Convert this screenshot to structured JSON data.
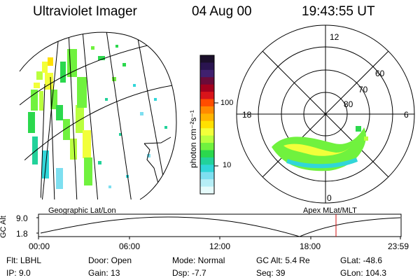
{
  "header": {
    "instrument": "Ultraviolet Imager",
    "date": "04 Aug 00",
    "time": "19:43:55 UT"
  },
  "colorbar": {
    "label": "photon cm⁻²s⁻¹",
    "ticks": [
      "100",
      "10"
    ],
    "colors": [
      "#1b0f2b",
      "#2a1450",
      "#40206f",
      "#6a0b3a",
      "#a3001e",
      "#d8141a",
      "#ff4d00",
      "#ff8a00",
      "#ffb400",
      "#ffe000",
      "#f2ff3a",
      "#b9ff3e",
      "#70f23e",
      "#2bd84d",
      "#22d29a",
      "#31d6d8",
      "#7edff0",
      "#b6eef6",
      "#e6fbfb"
    ]
  },
  "left_map": {
    "caption": "Geographic Lat/Lon"
  },
  "polar_map": {
    "caption": "Apex MLat/MLT",
    "mlt_labels": [
      "12",
      "18",
      "6",
      "0"
    ],
    "mlat_labels": [
      "60",
      "70",
      "80"
    ]
  },
  "timeline": {
    "ylabel": "GC Alt",
    "yticks": [
      "9.0",
      "1.8"
    ],
    "xticks": [
      "00:00",
      "06:00",
      "12:00",
      "18:00",
      "23:59"
    ],
    "marker_color": "#d01010"
  },
  "info": {
    "col1": [
      "Flt: LBHL",
      "IP:  9.0"
    ],
    "col2": [
      "Door: Open",
      "Gain: 13"
    ],
    "col3": [
      "Mode: Normal",
      "Dsp:    -7.7"
    ],
    "col4": [
      "GC Alt: 5.4 Re",
      "Seq: 39"
    ],
    "col5": [
      "GLat: -48.6",
      "GLon: 104.3"
    ]
  }
}
